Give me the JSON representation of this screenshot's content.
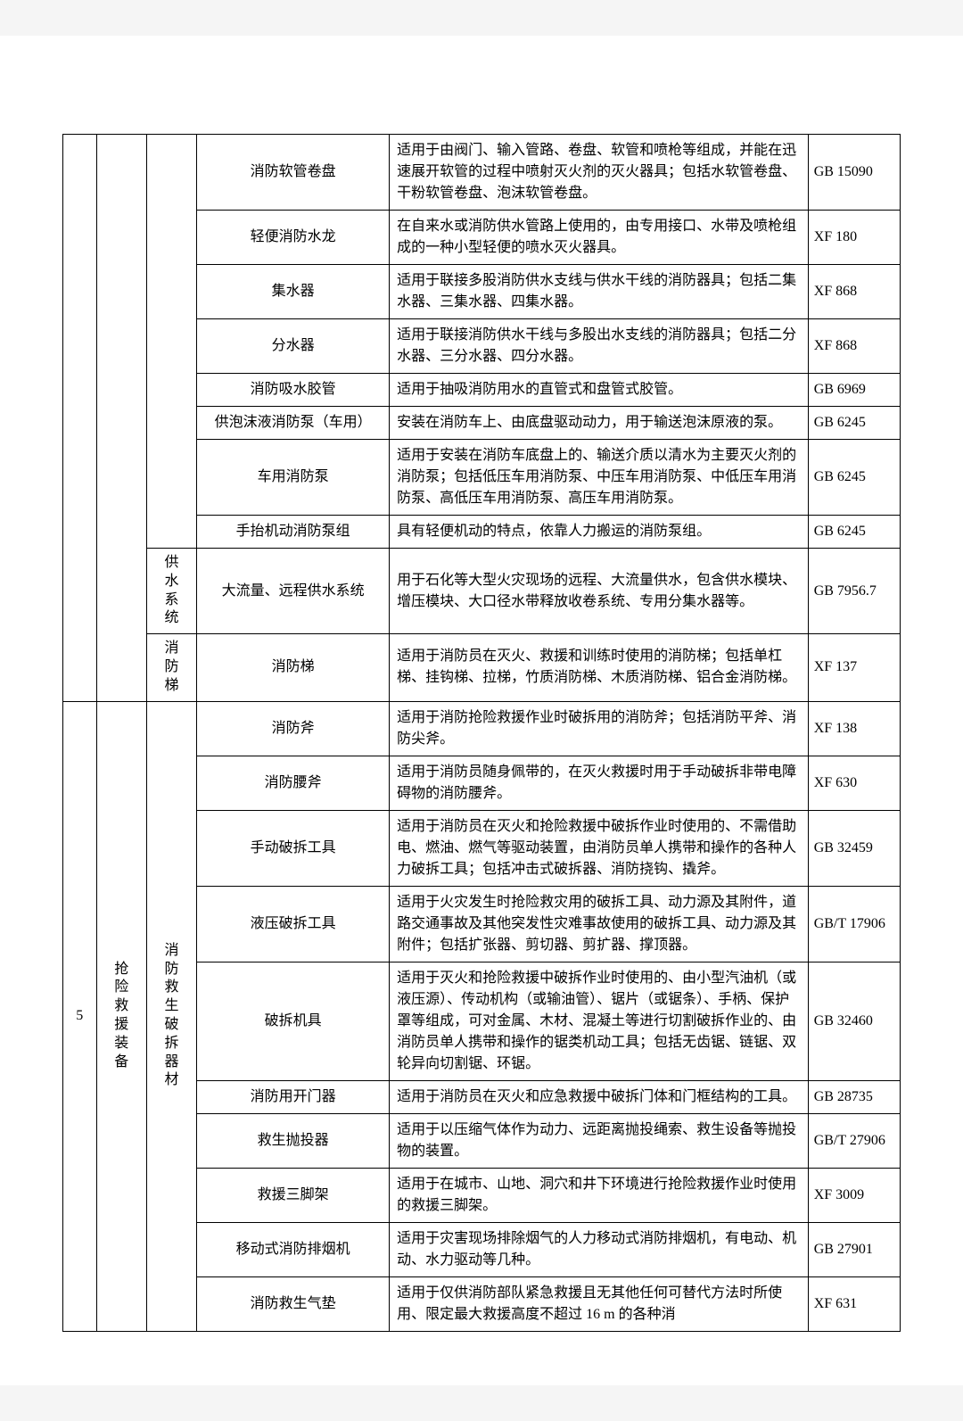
{
  "rows": [
    {
      "idx": "",
      "cat": "",
      "sub": "",
      "name": "消防软管卷盘",
      "desc": "适用于由阀门、输入管路、卷盘、软管和喷枪等组成，并能在迅速展开软管的过程中喷射灭火剂的灭火器具；包括水软管卷盘、干粉软管卷盘、泡沫软管卷盘。",
      "std": "GB 15090"
    },
    {
      "name": "轻便消防水龙",
      "desc": "在自来水或消防供水管路上使用的，由专用接口、水带及喷枪组成的一种小型轻便的喷水灭火器具。",
      "std": "XF 180"
    },
    {
      "name": "集水器",
      "desc": "适用于联接多股消防供水支线与供水干线的消防器具；包括二集水器、三集水器、四集水器。",
      "std": "XF 868"
    },
    {
      "name": "分水器",
      "desc": "适用于联接消防供水干线与多股出水支线的消防器具；包括二分水器、三分水器、四分水器。",
      "std": "XF 868"
    },
    {
      "name": "消防吸水胶管",
      "desc": "适用于抽吸消防用水的直管式和盘管式胶管。",
      "std": "GB 6969"
    },
    {
      "name": "供泡沫液消防泵（车用）",
      "desc": "安装在消防车上、由底盘驱动动力，用于输送泡沫原液的泵。",
      "std": "GB 6245"
    },
    {
      "name": "车用消防泵",
      "desc": "适用于安装在消防车底盘上的、输送介质以清水为主要灭火剂的消防泵；包括低压车用消防泵、中压车用消防泵、中低压车用消防泵、高低压车用消防泵、高压车用消防泵。",
      "std": "GB 6245"
    },
    {
      "name": "手抬机动消防泵组",
      "desc": "具有轻便机动的特点，依靠人力搬运的消防泵组。",
      "std": "GB 6245"
    },
    {
      "sub": "供水系统",
      "name": "大流量、远程供水系统",
      "desc": "用于石化等大型火灾现场的远程、大流量供水，包含供水模块、增压模块、大口径水带释放收卷系统、专用分集水器等。",
      "std": "GB 7956.7"
    },
    {
      "sub": "消防梯",
      "name": "消防梯",
      "desc": "适用于消防员在灭火、救援和训练时使用的消防梯；包括单杠梯、挂钩梯、拉梯，竹质消防梯、木质消防梯、铝合金消防梯。",
      "std": "XF 137"
    },
    {
      "idx": "5",
      "cat": "抢险救援装备",
      "sub": "消防救生破拆器材",
      "name": "消防斧",
      "desc": "适用于消防抢险救援作业时破拆用的消防斧；包括消防平斧、消防尖斧。",
      "std": "XF 138"
    },
    {
      "name": "消防腰斧",
      "desc": "适用于消防员随身佩带的，在灭火救援时用于手动破拆非带电障碍物的消防腰斧。",
      "std": "XF 630"
    },
    {
      "name": "手动破拆工具",
      "desc": "适用于消防员在灭火和抢险救援中破拆作业时使用的、不需借助电、燃油、燃气等驱动装置，由消防员单人携带和操作的各种人力破拆工具；包括冲击式破拆器、消防挠钩、撬斧。",
      "std": "GB 32459"
    },
    {
      "name": "液压破拆工具",
      "desc": "适用于火灾发生时抢险救灾用的破拆工具、动力源及其附件，道路交通事故及其他突发性灾难事故使用的破拆工具、动力源及其附件；包括扩张器、剪切器、剪扩器、撑顶器。",
      "std": "GB/T 17906"
    },
    {
      "name": "破拆机具",
      "desc": "适用于灭火和抢险救援中破拆作业时使用的、由小型汽油机（或液压源）、传动机构（或输油管）、锯片（或锯条）、手柄、保护罩等组成，可对金属、木材、混凝土等进行切割破拆作业的、由消防员单人携带和操作的锯类机动工具；包括无齿锯、链锯、双轮异向切割锯、环锯。",
      "std": "GB 32460"
    },
    {
      "name": "消防用开门器",
      "desc": "适用于消防员在灭火和应急救援中破拆门体和门框结构的工具。",
      "std": "GB 28735"
    },
    {
      "name": "救生抛投器",
      "desc": "适用于以压缩气体作为动力、远距离抛投绳索、救生设备等抛投物的装置。",
      "std": "GB/T 27906"
    },
    {
      "name": "救援三脚架",
      "desc": "适用于在城市、山地、洞穴和井下环境进行抢险救援作业时使用的救援三脚架。",
      "std": "XF 3009"
    },
    {
      "name": "移动式消防排烟机",
      "desc": "适用于灾害现场排除烟气的人力移动式消防排烟机，有电动、机动、水力驱动等几种。",
      "std": "GB 27901"
    },
    {
      "name": "消防救生气垫",
      "desc": "适用于仅供消防部队紧急救援且无其他任何可替代方法时所使用、限定最大救援高度不超过 16 m 的各种消",
      "std": "XF 631"
    }
  ]
}
